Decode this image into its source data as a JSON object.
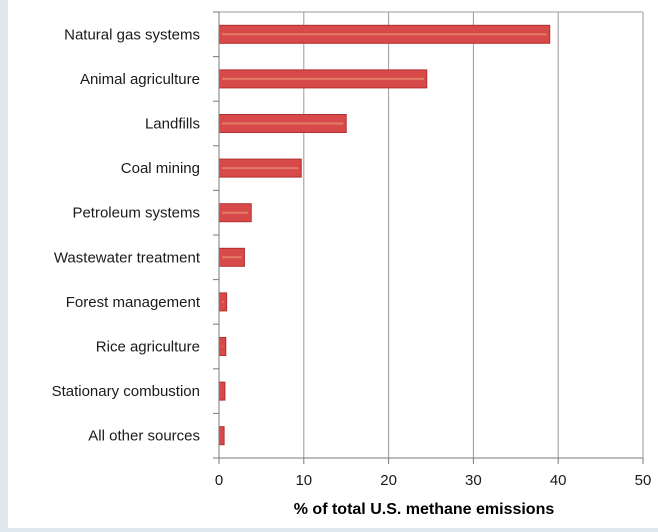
{
  "chart_data": {
    "type": "bar",
    "orientation": "horizontal",
    "categories": [
      "Natural gas systems",
      "Animal agriculture",
      "Landfills",
      "Coal mining",
      "Petroleum systems",
      "Wastewater treatment",
      "Forest management",
      "Rice agriculture",
      "Stationary combustion",
      "All other sources"
    ],
    "values": [
      39,
      24.5,
      15,
      9.7,
      3.8,
      3.0,
      0.9,
      0.8,
      0.7,
      0.6
    ],
    "title": "",
    "xlabel": "% of total U.S. methane emissions",
    "ylabel": "",
    "xlim": [
      0,
      50
    ],
    "xticks": [
      "0",
      "10",
      "20",
      "30",
      "40",
      "50"
    ],
    "grid": "vertical",
    "legend": "none",
    "colors": {
      "bar_fill": "#d8494a",
      "bar_stroke": "#b03030",
      "bar_highlight": "#e58a6a",
      "grid": "#9a9a9a",
      "axis": "#7a7a7a",
      "background_strip": "#dfe7ef"
    }
  }
}
